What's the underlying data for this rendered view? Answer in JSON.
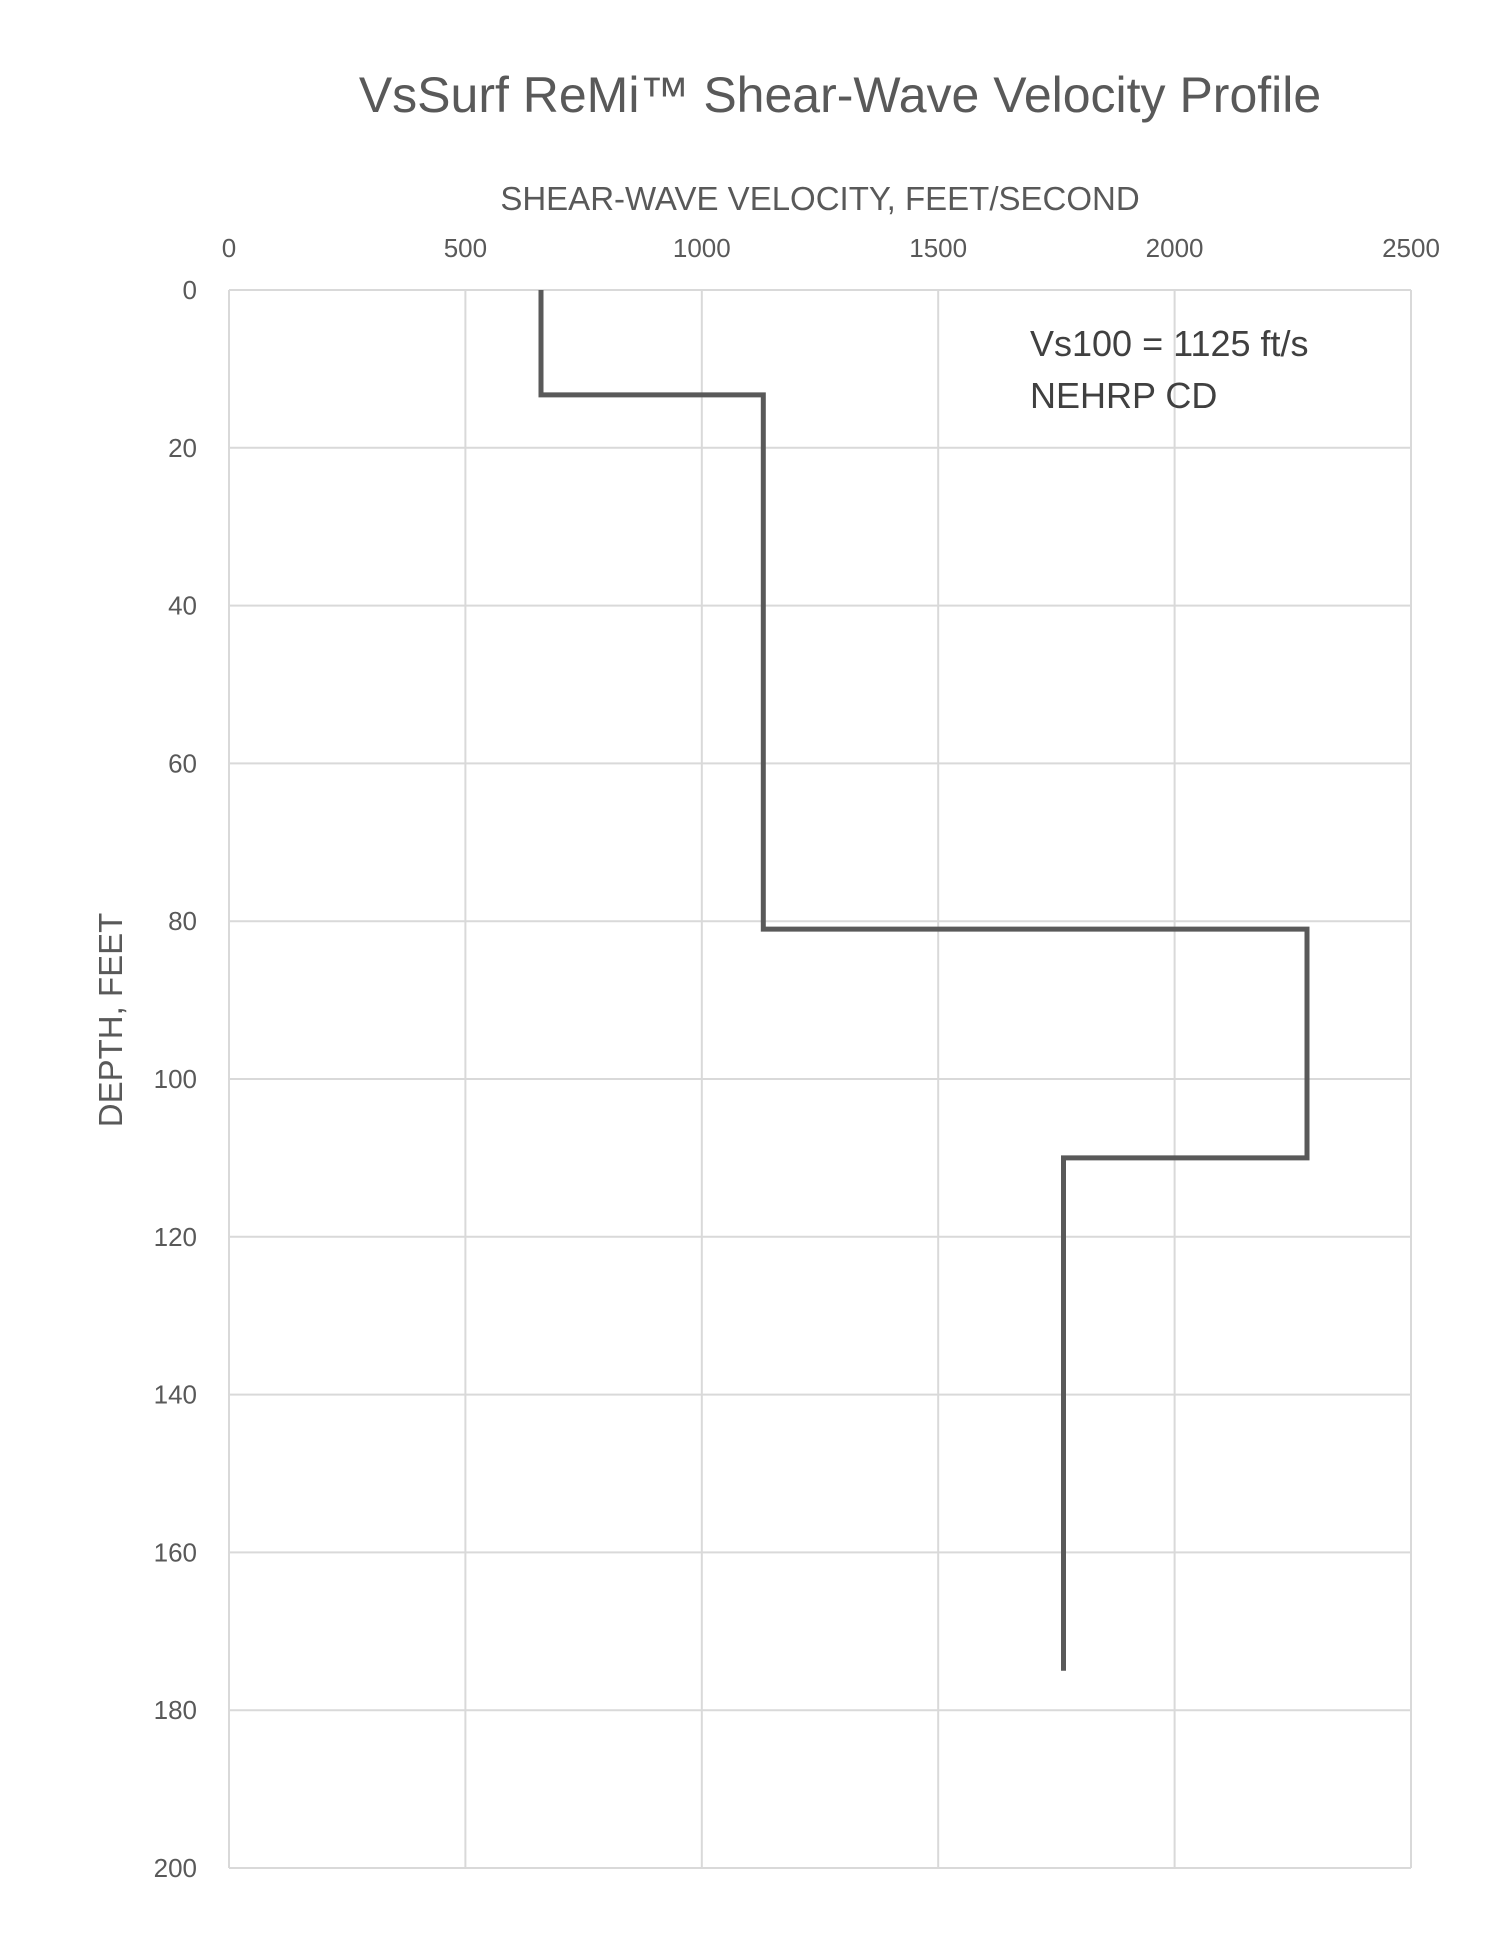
{
  "chart_data": {
    "type": "line",
    "title": "VsSurf ReMi™ Shear-Wave Velocity Profile",
    "xlabel": "SHEAR-WAVE VELOCITY, FEET/SECOND",
    "ylabel": "DEPTH, FEET",
    "xlim": [
      0,
      2500
    ],
    "ylim": [
      0,
      200
    ],
    "y_inverted": true,
    "x_axis_position": "top",
    "x_ticks": [
      "0",
      "500",
      "1000",
      "1500",
      "2000",
      "2500"
    ],
    "y_ticks": [
      "0",
      "20",
      "40",
      "60",
      "80",
      "100",
      "120",
      "140",
      "160",
      "180",
      "200"
    ],
    "x_tick_values": [
      0,
      500,
      1000,
      1500,
      2000,
      2500
    ],
    "y_tick_values": [
      0,
      20,
      40,
      60,
      80,
      100,
      120,
      140,
      160,
      180,
      200
    ],
    "grid": true,
    "series": [
      {
        "color": "#595959",
        "points": [
          {
            "x": 660,
            "y": 0
          },
          {
            "x": 660,
            "y": 13.3
          },
          {
            "x": 1130,
            "y": 13.3
          },
          {
            "x": 1130,
            "y": 81
          },
          {
            "x": 2280,
            "y": 81
          },
          {
            "x": 2280,
            "y": 110
          },
          {
            "x": 1765,
            "y": 110
          },
          {
            "x": 1765,
            "y": 175
          }
        ]
      }
    ],
    "annotations": [
      "Vs100 = 1125 ft/s",
      "NEHRP CD"
    ]
  }
}
